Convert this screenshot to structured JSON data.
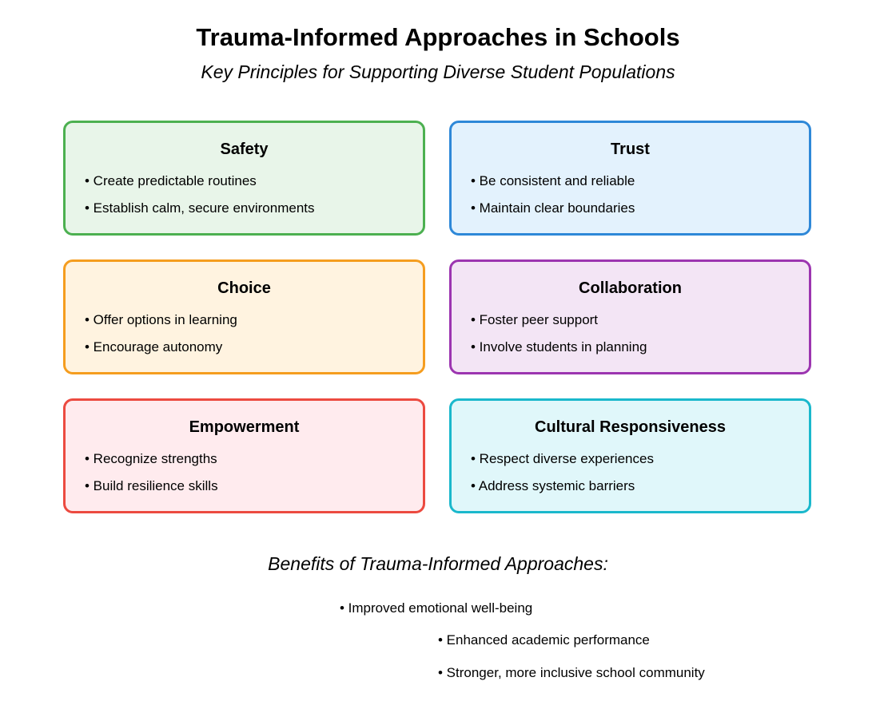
{
  "title": "Trauma-Informed Approaches in Schools",
  "subtitle": "Key Principles for Supporting Diverse Student Populations",
  "principles": [
    {
      "title": "Safety",
      "border_color": "#4cb050",
      "fill_color": "#e8f5e9",
      "items": [
        "• Create predictable routines",
        "• Establish calm, secure environments"
      ]
    },
    {
      "title": "Trust",
      "border_color": "#2e88d8",
      "fill_color": "#e3f2fd",
      "items": [
        "• Be consistent and reliable",
        "• Maintain clear boundaries"
      ]
    },
    {
      "title": "Choice",
      "border_color": "#f59d1f",
      "fill_color": "#fff3e0",
      "items": [
        "• Offer options in learning",
        "• Encourage autonomy"
      ]
    },
    {
      "title": "Collaboration",
      "border_color": "#9c35b0",
      "fill_color": "#f3e5f5",
      "items": [
        "• Foster peer support",
        "• Involve students in planning"
      ]
    },
    {
      "title": "Empowerment",
      "border_color": "#ec4a40",
      "fill_color": "#ffebee",
      "items": [
        "• Recognize strengths",
        "• Build resilience skills"
      ]
    },
    {
      "title": "Cultural Responsiveness",
      "border_color": "#1ab8cc",
      "fill_color": "#e0f7fa",
      "items": [
        "• Respect diverse experiences",
        "• Address systemic barriers"
      ]
    }
  ],
  "benefits": {
    "heading": "Benefits of Trauma-Informed Approaches:",
    "items": [
      "• Improved emotional well-being",
      "• Enhanced academic performance",
      "• Stronger, more inclusive school community"
    ]
  }
}
